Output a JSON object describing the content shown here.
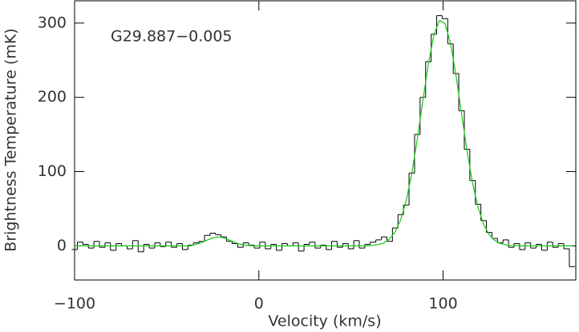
{
  "chart_data": {
    "type": "line",
    "annotation": "G29.887−0.005",
    "xlabel": "Velocity (km/s)",
    "ylabel": "Brightness Temperature (mK)",
    "xlim": [
      -100,
      172
    ],
    "ylim": [
      -46,
      330
    ],
    "xticks": [
      {
        "value": -100,
        "label": "−100"
      },
      0,
      100
    ],
    "yticks": [
      0,
      100,
      200,
      300
    ],
    "x": [
      -100,
      -97,
      -94,
      -91,
      -88,
      -85,
      -82,
      -79,
      -76,
      -73,
      -70,
      -67,
      -64,
      -61,
      -58,
      -55,
      -52,
      -49,
      -46,
      -43,
      -40,
      -37,
      -34,
      -31,
      -28,
      -25,
      -22,
      -19,
      -16,
      -13,
      -10,
      -7,
      -4,
      -1,
      2,
      5,
      8,
      11,
      14,
      17,
      20,
      23,
      26,
      29,
      32,
      35,
      38,
      41,
      44,
      47,
      50,
      53,
      56,
      59,
      62,
      65,
      68,
      71,
      74,
      77,
      80,
      83,
      86,
      89,
      92,
      95,
      98,
      101,
      104,
      107,
      110,
      113,
      116,
      119,
      122,
      125,
      128,
      131,
      134,
      137,
      140,
      143,
      146,
      149,
      152,
      155,
      158,
      161,
      164,
      167,
      170
    ],
    "series": [
      {
        "color": "#000000",
        "drawstyle": "steps-mid",
        "values": [
          -5,
          5,
          2,
          -3,
          6,
          -2,
          4,
          -6,
          3,
          0,
          -4,
          7,
          -8,
          2,
          -3,
          4,
          -1,
          5,
          -2,
          3,
          -5,
          1,
          4,
          6,
          14,
          17,
          15,
          12,
          6,
          3,
          -2,
          4,
          1,
          -3,
          5,
          -4,
          2,
          -6,
          3,
          0,
          4,
          -7,
          2,
          5,
          -3,
          1,
          -5,
          6,
          -2,
          3,
          -4,
          7,
          -3,
          2,
          5,
          8,
          12,
          6,
          24,
          42,
          55,
          98,
          150,
          200,
          248,
          285,
          310,
          306,
          272,
          232,
          182,
          130,
          88,
          56,
          34,
          18,
          10,
          4,
          8,
          -2,
          3,
          -5,
          4,
          -3,
          2,
          -6,
          5,
          -2,
          3,
          -4,
          -28
        ]
      },
      {
        "color": "#22cc22",
        "drawstyle": "default",
        "values": [
          0,
          0,
          0,
          0,
          0,
          0,
          0,
          0,
          0,
          0,
          0,
          0,
          0,
          0,
          0,
          0,
          0,
          0,
          0,
          0,
          0,
          0,
          2.1,
          4.5,
          7.7,
          10.8,
          12,
          10.8,
          7.7,
          4.5,
          2.1,
          0.8,
          0.2,
          0,
          0,
          0,
          0,
          0,
          0,
          0,
          0,
          0,
          0,
          0,
          0,
          0,
          0,
          0,
          0,
          0,
          0,
          0,
          0,
          0.1,
          0.7,
          1.8,
          4.2,
          9.3,
          18.9,
          35.4,
          61.2,
          97.6,
          143.8,
          195.4,
          245.2,
          284,
          303.6,
          299.6,
          272.9,
          229.4,
          178,
          127.5,
          84.3,
          51.4,
          29,
          15.1,
          7.2,
          3.2,
          1.3,
          0.5,
          0.2,
          0,
          0,
          0,
          0,
          0,
          0,
          0,
          0,
          0,
          0
        ]
      }
    ]
  }
}
